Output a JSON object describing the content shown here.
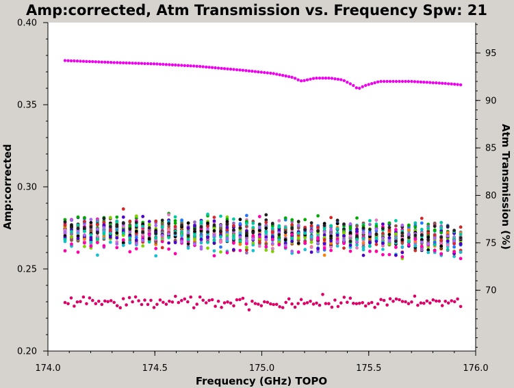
{
  "chart_data": {
    "type": "scatter",
    "title": "Amp:corrected, Atm Transmission vs. Frequency Spw: 21",
    "xlabel": "Frequency (GHz) TOPO",
    "ylabel": "Amp:corrected",
    "y2label": "Atm Transmission (%)",
    "xlim": [
      174.0,
      176.0
    ],
    "ylim": [
      0.2,
      0.4
    ],
    "y2lim": [
      63.6,
      98.2
    ],
    "x_ticks": [
      "174.0",
      "174.5",
      "175.0",
      "175.5",
      "176.0"
    ],
    "y_ticks": [
      "0.20",
      "0.25",
      "0.30",
      "0.35",
      "0.40"
    ],
    "y2_ticks": [
      "70",
      "75",
      "80",
      "85",
      "90",
      "95"
    ],
    "grid": false,
    "legend": "none",
    "x_range_points": [
      174.08,
      175.93
    ],
    "colors": {
      "background": "#d6d3ce",
      "plot_area": "#ffffff",
      "atm_transmission": "#ee00ee",
      "low_amp_series": "#dd0066",
      "cluster": [
        "#1f77ff",
        "#00aa00",
        "#ff7f0e",
        "#9467bd",
        "#e377c2",
        "#8c564b",
        "#17becf",
        "#7fd000",
        "#d62728",
        "#000000",
        "#4a00c8",
        "#ff00aa",
        "#00c8a0",
        "#aa66ee",
        "#222222"
      ]
    },
    "series": [
      {
        "key": "atm",
        "kind": "atm_transmission",
        "axis": "right",
        "color": "#ee00ee",
        "points": [
          [
            174.08,
            94.2
          ],
          [
            174.3,
            94.0
          ],
          [
            174.5,
            93.85
          ],
          [
            174.7,
            93.6
          ],
          [
            174.9,
            93.2
          ],
          [
            175.05,
            92.85
          ],
          [
            175.15,
            92.4
          ],
          [
            175.18,
            92.05
          ],
          [
            175.2,
            92.1
          ],
          [
            175.25,
            92.35
          ],
          [
            175.32,
            92.35
          ],
          [
            175.38,
            92.15
          ],
          [
            175.43,
            91.55
          ],
          [
            175.45,
            91.2
          ],
          [
            175.48,
            91.55
          ],
          [
            175.55,
            92.0
          ],
          [
            175.7,
            92.0
          ],
          [
            175.85,
            91.8
          ],
          [
            175.93,
            91.65
          ]
        ]
      },
      {
        "key": "low_amp",
        "kind": "amplitude",
        "axis": "left",
        "color": "#dd0066",
        "center": 0.2295,
        "spread": 0.0035
      },
      {
        "key": "cluster",
        "kind": "amplitude",
        "axis": "left",
        "center_start": 0.2735,
        "center_end": 0.2685,
        "spread": 0.0085
      }
    ]
  }
}
